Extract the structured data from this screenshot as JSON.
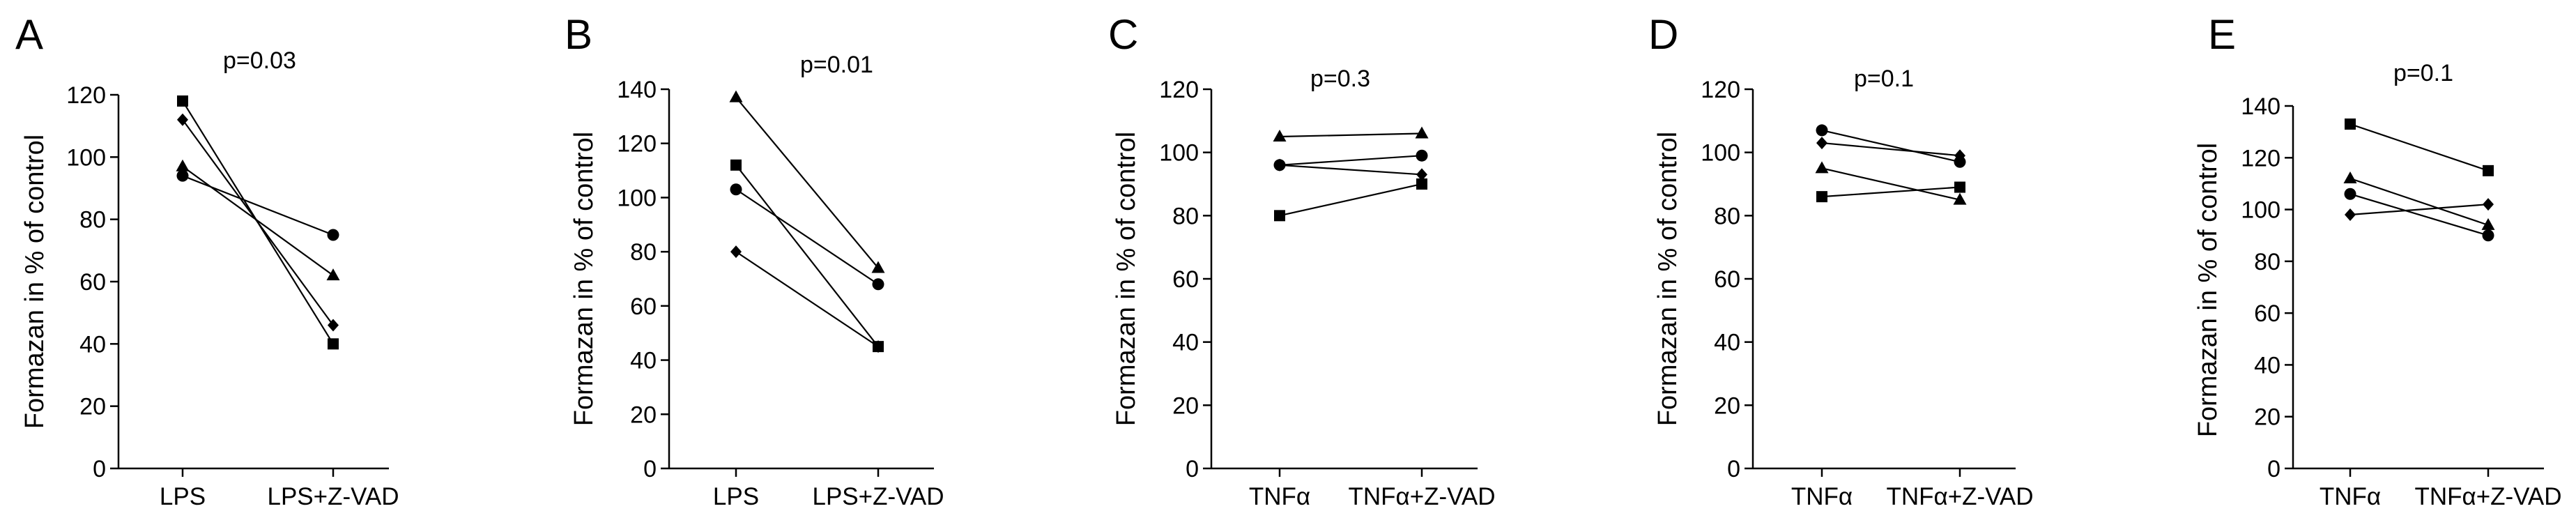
{
  "chart_data": [
    {
      "type": "line",
      "panel": "A",
      "annotation": "p=0.03",
      "ylabel": "Formazan in % of control",
      "categories": [
        "LPS",
        "LPS+Z-VAD"
      ],
      "ylim": [
        0,
        120
      ],
      "yticks": [
        0,
        20,
        40,
        60,
        80,
        100,
        120
      ],
      "series": [
        {
          "marker": "square",
          "values": [
            118,
            40
          ]
        },
        {
          "marker": "diamond",
          "values": [
            112,
            46
          ]
        },
        {
          "marker": "triangle",
          "values": [
            97,
            62
          ]
        },
        {
          "marker": "circle",
          "values": [
            94,
            75
          ]
        }
      ]
    },
    {
      "type": "line",
      "panel": "B",
      "annotation": "p=0.01",
      "ylabel": "Formazan in % of control",
      "categories": [
        "LPS",
        "LPS+Z-VAD"
      ],
      "ylim": [
        0,
        140
      ],
      "yticks": [
        0,
        20,
        40,
        60,
        80,
        100,
        120,
        140
      ],
      "series": [
        {
          "marker": "triangle",
          "values": [
            137,
            74
          ]
        },
        {
          "marker": "square",
          "values": [
            112,
            45
          ]
        },
        {
          "marker": "circle",
          "values": [
            103,
            68
          ]
        },
        {
          "marker": "diamond",
          "values": [
            80,
            45
          ]
        }
      ]
    },
    {
      "type": "line",
      "panel": "C",
      "annotation": "p=0.3",
      "ylabel": "Formazan in % of control",
      "categories": [
        "TNFα",
        "TNFα+Z-VAD"
      ],
      "ylim": [
        0,
        120
      ],
      "yticks": [
        0,
        20,
        40,
        60,
        80,
        100,
        120
      ],
      "series": [
        {
          "marker": "triangle",
          "values": [
            105,
            106
          ]
        },
        {
          "marker": "circle",
          "values": [
            96,
            99
          ]
        },
        {
          "marker": "diamond",
          "values": [
            96,
            93
          ]
        },
        {
          "marker": "square",
          "values": [
            80,
            90
          ]
        }
      ]
    },
    {
      "type": "line",
      "panel": "D",
      "annotation": "p=0.1",
      "ylabel": "Formazan in % of control",
      "categories": [
        "TNFα",
        "TNFα+Z-VAD"
      ],
      "ylim": [
        0,
        120
      ],
      "yticks": [
        0,
        20,
        40,
        60,
        80,
        100,
        120
      ],
      "series": [
        {
          "marker": "circle",
          "values": [
            107,
            97
          ]
        },
        {
          "marker": "diamond",
          "values": [
            103,
            99
          ]
        },
        {
          "marker": "triangle",
          "values": [
            95,
            85
          ]
        },
        {
          "marker": "square",
          "values": [
            86,
            89
          ]
        }
      ]
    },
    {
      "type": "line",
      "panel": "E",
      "annotation": "p=0.1",
      "ylabel": "Formazan in % of control",
      "categories": [
        "TNFα",
        "TNFα+Z-VAD"
      ],
      "ylim": [
        0,
        140
      ],
      "yticks": [
        0,
        20,
        40,
        60,
        80,
        100,
        120,
        140
      ],
      "series": [
        {
          "marker": "square",
          "values": [
            133,
            115
          ]
        },
        {
          "marker": "triangle",
          "values": [
            112,
            94
          ]
        },
        {
          "marker": "circle",
          "values": [
            106,
            90
          ]
        },
        {
          "marker": "diamond",
          "values": [
            98,
            102
          ]
        }
      ]
    }
  ]
}
